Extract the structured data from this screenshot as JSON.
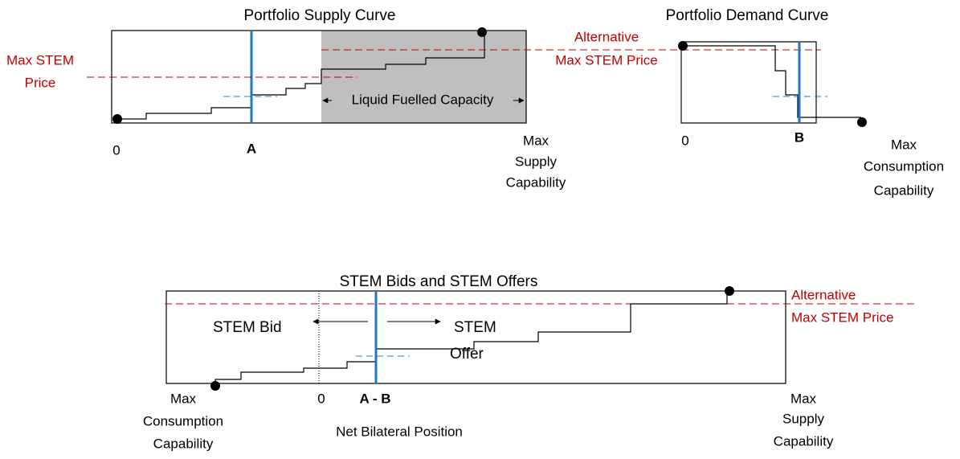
{
  "supply_panel": {
    "title": "Portfolio Supply Curve",
    "max_price_label": [
      "Max STEM",
      "Price"
    ],
    "alt_price_label": [
      "Alternative",
      "Max STEM Price"
    ],
    "region_label": "Liquid Fuelled Capacity",
    "origin_label": "0",
    "marker_label": "A",
    "end_label": [
      "Max",
      "Supply",
      "Capability"
    ]
  },
  "demand_panel": {
    "title": "Portfolio Demand Curve",
    "origin_label": "0",
    "marker_label": "B",
    "end_label": [
      "Max",
      "Consumption",
      "Capability"
    ]
  },
  "stem_panel": {
    "title": "STEM Bids and STEM Offers",
    "alt_price_label": [
      "Alternative",
      "Max STEM Price"
    ],
    "bid_label": "STEM Bid",
    "offer_label": [
      "STEM",
      "Offer"
    ],
    "start_label": [
      "Max",
      "Consumption",
      "Capability"
    ],
    "origin_label": "0",
    "marker_label": "A - B",
    "axis_label": "Net Bilateral Position",
    "end_label": [
      "Max",
      "Supply",
      "Capability"
    ]
  }
}
